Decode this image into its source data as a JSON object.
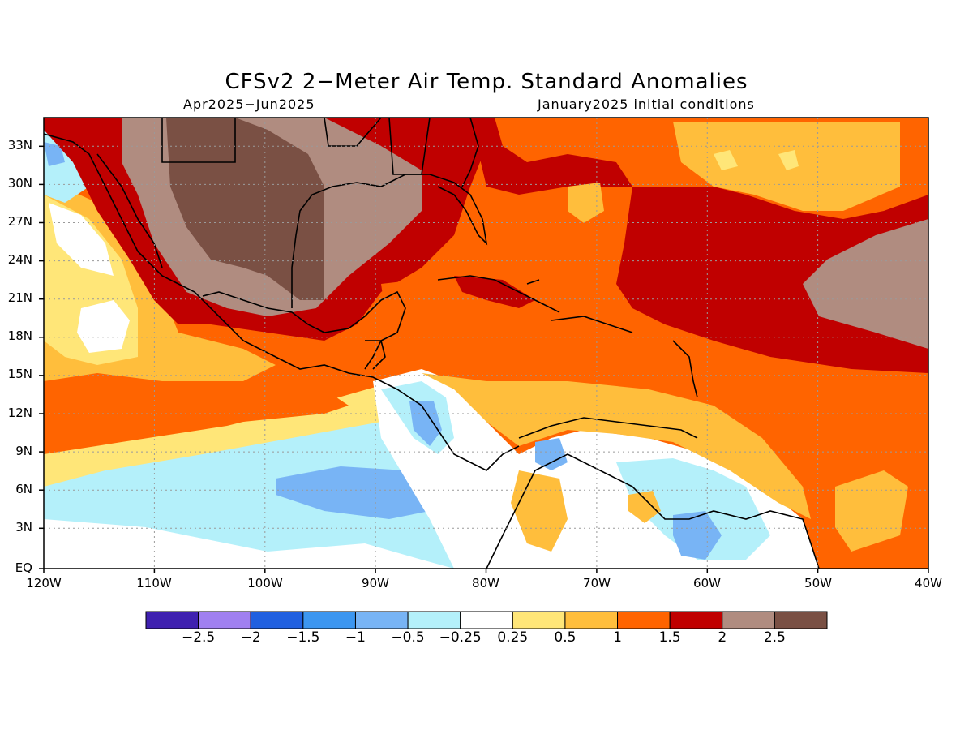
{
  "title": "CFSv2 2−Meter Air Temp. Standard Anomalies",
  "period": "Apr2025−Jun2025",
  "initial_conditions": "January2025 initial conditions",
  "lat_labels": [
    "33N",
    "30N",
    "27N",
    "24N",
    "21N",
    "18N",
    "15N",
    "12N",
    "9N",
    "6N",
    "3N",
    "EQ"
  ],
  "lon_labels": [
    "120W",
    "110W",
    "100W",
    "90W",
    "80W",
    "70W",
    "60W",
    "50W",
    "40W"
  ],
  "colorbar": {
    "colors": [
      "#3f20b0",
      "#a080f0",
      "#2060e0",
      "#3c96f0",
      "#78b4f5",
      "#b4f0fa",
      "#ffffff",
      "#ffe678",
      "#ffbe3c",
      "#ff6400",
      "#c00000",
      "#b08c80",
      "#7a5044"
    ],
    "labels": [
      "−2.5",
      "−2",
      "−1.5",
      "−1",
      "−0.5",
      "−0.25",
      "0.25",
      "0.5",
      "1",
      "1.5",
      "2",
      "2.5"
    ]
  }
}
